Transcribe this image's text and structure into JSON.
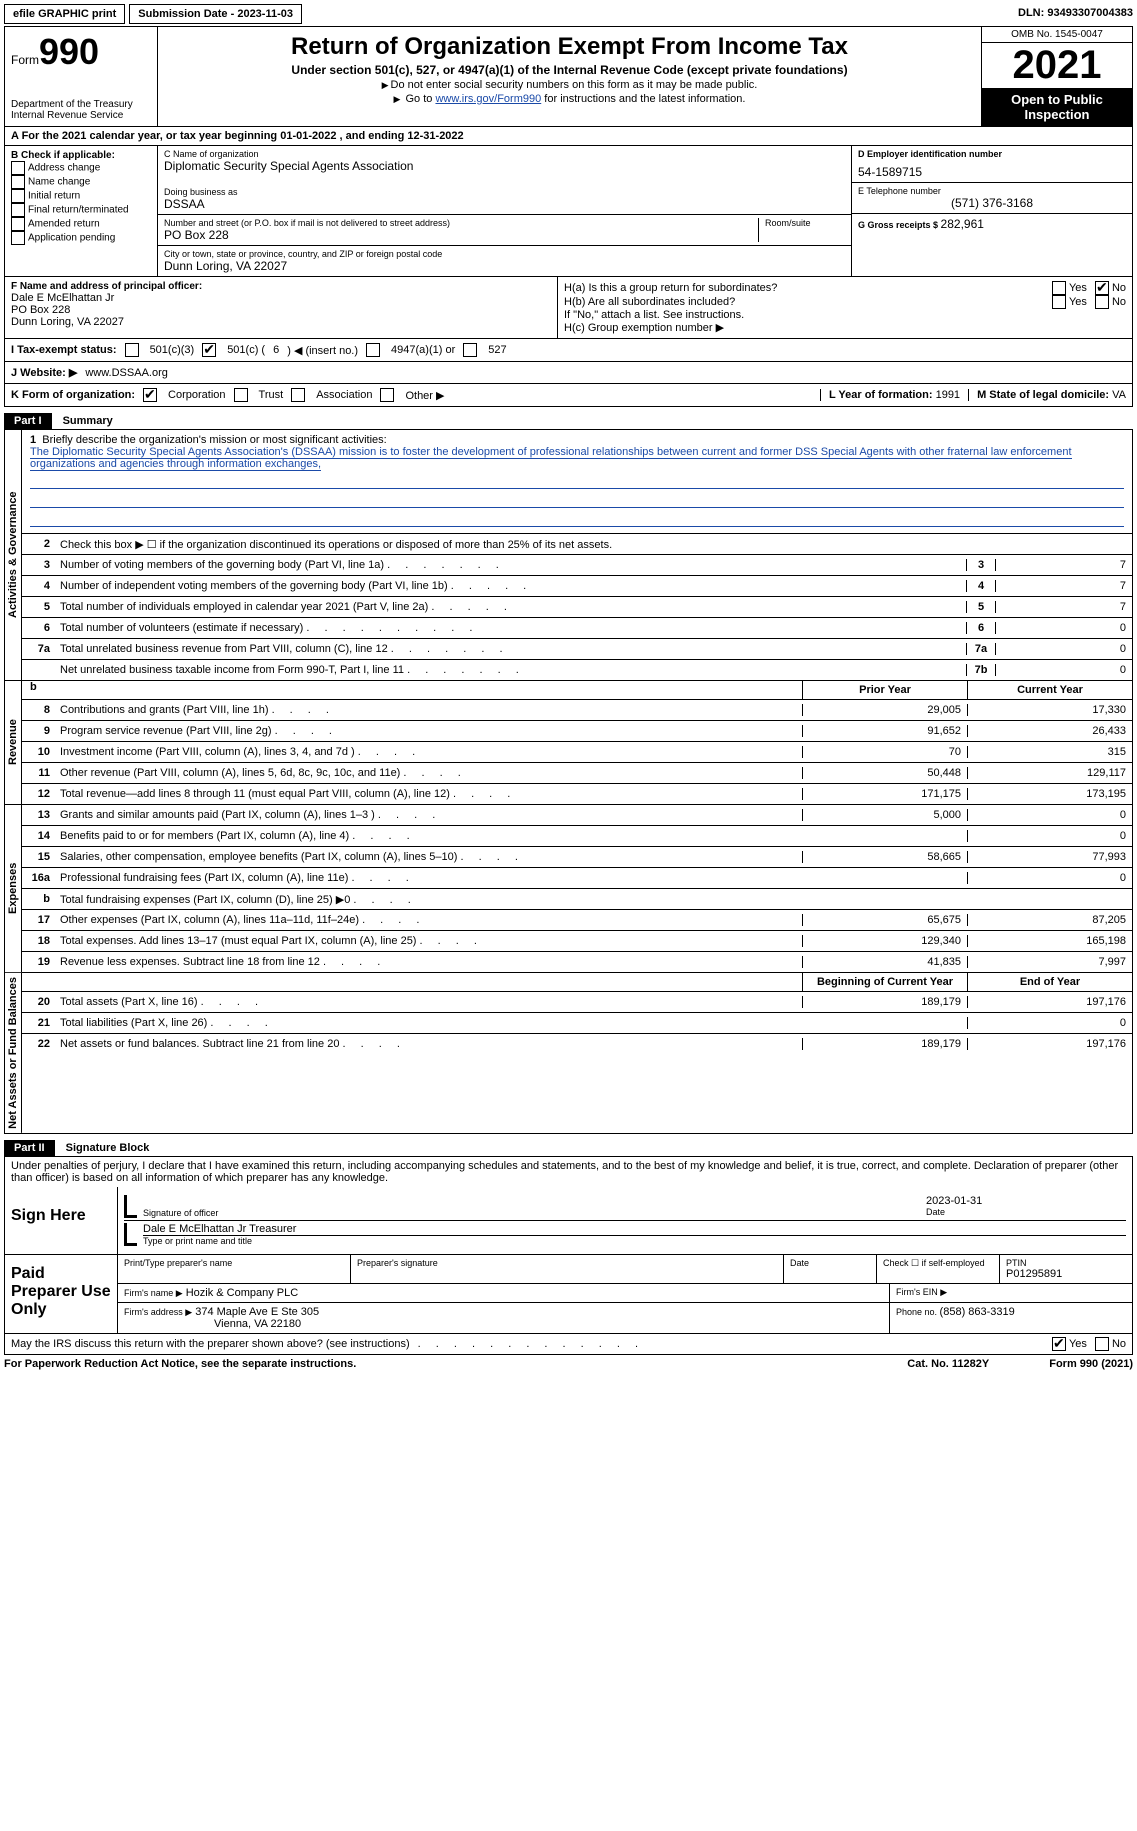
{
  "top": {
    "efile": "efile GRAPHIC print",
    "submission_label": "Submission Date - ",
    "submission_date": "2023-11-03",
    "dln_label": "DLN: ",
    "dln": "93493307004383"
  },
  "header": {
    "form_label": "Form",
    "form_number": "990",
    "dept1": "Department of the Treasury",
    "dept2": "Internal Revenue Service",
    "title": "Return of Organization Exempt From Income Tax",
    "subtitle": "Under section 501(c), 527, or 4947(a)(1) of the Internal Revenue Code (except private foundations)",
    "note1": "Do not enter social security numbers on this form as it may be made public.",
    "note2_pre": "Go to ",
    "note2_link": "www.irs.gov/Form990",
    "note2_post": " for instructions and the latest information.",
    "omb": "OMB No. 1545-0047",
    "year": "2021",
    "inspection": "Open to Public Inspection"
  },
  "tax_year": {
    "line_pre": "A For the 2021 calendar year, or tax year beginning ",
    "begin": "01-01-2022",
    "mid": " , and ending ",
    "end": "12-31-2022"
  },
  "box_b": {
    "heading": "B Check if applicable:",
    "opts": [
      "Address change",
      "Name change",
      "Initial return",
      "Final return/terminated",
      "Amended return",
      "Application pending"
    ]
  },
  "box_c": {
    "name_label": "C Name of organization",
    "name": "Diplomatic Security Special Agents Association",
    "dba_label": "Doing business as",
    "dba": "DSSAA",
    "street_label": "Number and street (or P.O. box if mail is not delivered to street address)",
    "room_label": "Room/suite",
    "street": "PO Box 228",
    "city_label": "City or town, state or province, country, and ZIP or foreign postal code",
    "city": "Dunn Loring, VA  22027"
  },
  "box_d": {
    "ein_label": "D Employer identification number",
    "ein": "54-1589715",
    "phone_label": "E Telephone number",
    "phone": "(571) 376-3168",
    "gross_label": "G Gross receipts $ ",
    "gross": "282,961"
  },
  "box_f": {
    "label": "F  Name and address of principal officer:",
    "name": "Dale E McElhattan Jr",
    "street": "PO Box 228",
    "city": "Dunn Loring, VA  22027"
  },
  "box_h": {
    "ha_label": "H(a)  Is this a group return for subordinates?",
    "hb_label": "H(b)  Are all subordinates included?",
    "hb_note": "If \"No,\" attach a list. See instructions.",
    "hc_label": "H(c)  Group exemption number ",
    "yes": "Yes",
    "no": "No"
  },
  "tes": {
    "label": "I  Tax-exempt status:",
    "o1": "501(c)(3)",
    "o2_pre": "501(c) ( ",
    "o2_num": "6",
    "o2_post": " ) ◀ (insert no.)",
    "o3": "4947(a)(1) or",
    "o4": "527"
  },
  "website": {
    "label": "J Website: ▶ ",
    "url": "www.DSSAA.org"
  },
  "korg": {
    "label": "K Form of organization:",
    "opts": [
      "Corporation",
      "Trust",
      "Association",
      "Other ▶"
    ],
    "l_label": "L Year of formation: ",
    "l_val": "1991",
    "m_label": "M State of legal domicile: ",
    "m_val": "VA"
  },
  "parts": {
    "p1": "Part I",
    "p1_title": "Summary",
    "p2": "Part II",
    "p2_title": "Signature Block"
  },
  "sides": {
    "ag": "Activities & Governance",
    "rev": "Revenue",
    "exp": "Expenses",
    "net": "Net Assets or Fund Balances"
  },
  "mission": {
    "label": "Briefly describe the organization's mission or most significant activities:",
    "text": "The Diplomatic Security Special Agents Association's (DSSAA) mission is to foster the development of professional relationships between current and former DSS Special Agents with other fraternal law enforcement organizations and agencies through information exchanges,"
  },
  "gov_lines": {
    "l2": "Check this box ▶ ☐ if the organization discontinued its operations or disposed of more than 25% of its net assets.",
    "l3": "Number of voting members of the governing body (Part VI, line 1a)",
    "l4": "Number of independent voting members of the governing body (Part VI, line 1b)",
    "l5": "Total number of individuals employed in calendar year 2021 (Part V, line 2a)",
    "l6": "Total number of volunteers (estimate if necessary)",
    "l7a": "Total unrelated business revenue from Part VIII, column (C), line 12",
    "l7b": "Net unrelated business taxable income from Form 990-T, Part I, line 11",
    "v3": "7",
    "v4": "7",
    "v5": "7",
    "v6": "0",
    "v7a": "0",
    "v7b": "0"
  },
  "col_headers": {
    "prior": "Prior Year",
    "current": "Current Year",
    "begin": "Beginning of Current Year",
    "end": "End of Year"
  },
  "rev": [
    {
      "n": "8",
      "d": "Contributions and grants (Part VIII, line 1h)",
      "p": "29,005",
      "c": "17,330"
    },
    {
      "n": "9",
      "d": "Program service revenue (Part VIII, line 2g)",
      "p": "91,652",
      "c": "26,433"
    },
    {
      "n": "10",
      "d": "Investment income (Part VIII, column (A), lines 3, 4, and 7d )",
      "p": "70",
      "c": "315"
    },
    {
      "n": "11",
      "d": "Other revenue (Part VIII, column (A), lines 5, 6d, 8c, 9c, 10c, and 11e)",
      "p": "50,448",
      "c": "129,117"
    },
    {
      "n": "12",
      "d": "Total revenue—add lines 8 through 11 (must equal Part VIII, column (A), line 12)",
      "p": "171,175",
      "c": "173,195"
    }
  ],
  "exp": [
    {
      "n": "13",
      "d": "Grants and similar amounts paid (Part IX, column (A), lines 1–3 )",
      "p": "5,000",
      "c": "0"
    },
    {
      "n": "14",
      "d": "Benefits paid to or for members (Part IX, column (A), line 4)",
      "p": "",
      "c": "0"
    },
    {
      "n": "15",
      "d": "Salaries, other compensation, employee benefits (Part IX, column (A), lines 5–10)",
      "p": "58,665",
      "c": "77,993"
    },
    {
      "n": "16a",
      "d": "Professional fundraising fees (Part IX, column (A), line 11e)",
      "p": "",
      "c": "0"
    },
    {
      "n": "b",
      "d": "Total fundraising expenses (Part IX, column (D), line 25) ▶0",
      "p": "SHADE",
      "c": "SHADE"
    },
    {
      "n": "17",
      "d": "Other expenses (Part IX, column (A), lines 11a–11d, 11f–24e)",
      "p": "65,675",
      "c": "87,205"
    },
    {
      "n": "18",
      "d": "Total expenses. Add lines 13–17 (must equal Part IX, column (A), line 25)",
      "p": "129,340",
      "c": "165,198"
    },
    {
      "n": "19",
      "d": "Revenue less expenses. Subtract line 18 from line 12",
      "p": "41,835",
      "c": "7,997"
    }
  ],
  "net": [
    {
      "n": "20",
      "d": "Total assets (Part X, line 16)",
      "p": "189,179",
      "c": "197,176"
    },
    {
      "n": "21",
      "d": "Total liabilities (Part X, line 26)",
      "p": "",
      "c": "0"
    },
    {
      "n": "22",
      "d": "Net assets or fund balances. Subtract line 21 from line 20",
      "p": "189,179",
      "c": "197,176"
    }
  ],
  "sig": {
    "penalty": "Under penalties of perjury, I declare that I have examined this return, including accompanying schedules and statements, and to the best of my knowledge and belief, it is true, correct, and complete. Declaration of preparer (other than officer) is based on all information of which preparer has any knowledge.",
    "sign_here": "Sign Here",
    "sig_officer": "Signature of officer",
    "date_label": "Date",
    "date": "2023-01-31",
    "name_title": "Dale E McElhattan Jr  Treasurer",
    "type_label": "Type or print name and title"
  },
  "prep": {
    "label": "Paid Preparer Use Only",
    "h1": "Print/Type preparer's name",
    "h2": "Preparer's signature",
    "h3": "Date",
    "h4_pre": "Check ☐ if self-employed",
    "h5": "PTIN",
    "ptin": "P01295891",
    "firm_name_label": "Firm's name      ▶",
    "firm_name": "Hozik & Company PLC",
    "firm_ein_label": "Firm's EIN ▶",
    "firm_addr_label": "Firm's address ▶",
    "firm_addr1": "374 Maple Ave E Ste 305",
    "firm_addr2": "Vienna, VA  22180",
    "phone_label": "Phone no. ",
    "phone": "(858) 863-3319"
  },
  "footer": {
    "discuss": "May the IRS discuss this return with the preparer shown above? (see instructions)",
    "paperwork": "For Paperwork Reduction Act Notice, see the separate instructions.",
    "cat": "Cat. No. 11282Y",
    "form": "Form 990 (2021)"
  }
}
